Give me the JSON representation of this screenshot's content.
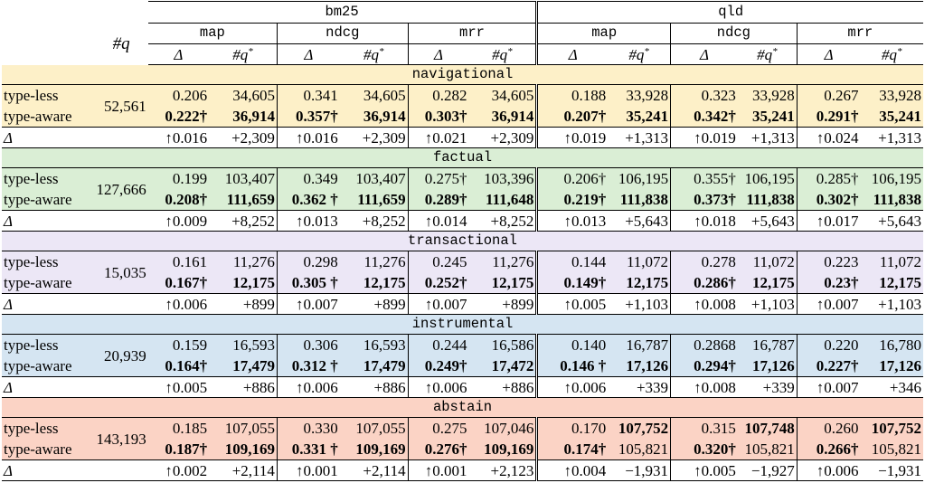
{
  "header": {
    "qcount_label": "#q",
    "systems": [
      "bm25",
      "qld"
    ],
    "metrics": [
      "map",
      "ndcg",
      "mrr"
    ],
    "sub_delta": "Δ",
    "sub_q_base": "#q",
    "sub_q_sup": "*"
  },
  "sections": [
    {
      "name": "navigational",
      "color": "#fdf0c8",
      "qcount": "52,561",
      "rows": [
        {
          "label": "type-less",
          "bold": false,
          "cells": [
            "0.206",
            "34,605",
            "0.341",
            "34,605",
            "0.282",
            "34,605",
            "0.188",
            "33,928",
            "0.323",
            "33,928",
            "0.267",
            "33,928"
          ]
        },
        {
          "label": "type-aware",
          "bold": true,
          "cells": [
            "0.222†",
            "36,914",
            "0.357†",
            "36,914",
            "0.303†",
            "36,914",
            "0.207†",
            "35,241",
            "0.342†",
            "35,241",
            "0.291†",
            "35,241"
          ]
        }
      ],
      "delta": {
        "label": "Δ",
        "cells": [
          "↑0.016",
          "+2,309",
          "↑0.016",
          "+2,309",
          "↑0.021",
          "+2,309",
          "↑0.019",
          "+1,313",
          "↑0.019",
          "+1,313",
          "↑0.024",
          "+1,313"
        ]
      }
    },
    {
      "name": "factual",
      "color": "#daeed5",
      "qcount": "127,666",
      "rows": [
        {
          "label": "type-less",
          "bold": false,
          "cells": [
            "0.199",
            "103,407",
            "0.349",
            "103,407",
            "0.275†",
            "103,396",
            "0.206†",
            "106,195",
            "0.355†",
            "106,195",
            "0.285†",
            "106,195"
          ]
        },
        {
          "label": "type-aware",
          "bold": true,
          "cells": [
            "0.208†",
            "111,659",
            "0.362 †",
            "111,659",
            "0.289†",
            "111,648",
            "0.219†",
            "111,838",
            "0.373†",
            "111,838",
            "0.302†",
            "111,838"
          ]
        }
      ],
      "delta": {
        "label": "Δ",
        "cells": [
          "↑0.009",
          "+8,252",
          "↑0.013",
          "+8,252",
          "↑0.014",
          "+8,252",
          "↑0.013",
          "+5,643",
          "↑0.018",
          "+5,643",
          "↑0.017",
          "+5,643"
        ]
      }
    },
    {
      "name": "transactional",
      "color": "#ece7f6",
      "qcount": "15,035",
      "rows": [
        {
          "label": "type-less",
          "bold": false,
          "cells": [
            "0.161",
            "11,276",
            "0.298",
            "11,276",
            "0.245",
            "11,276",
            "0.144",
            "11,072",
            "0.278",
            "11,072",
            "0.223",
            "11,072"
          ]
        },
        {
          "label": "type-aware",
          "bold": true,
          "cells": [
            "0.167†",
            "12,175",
            "0.305 †",
            "12,175",
            "0.252†",
            "12,175",
            "0.149†",
            "12,175",
            "0.286†",
            "12,175",
            "0.23†",
            "12,175"
          ]
        }
      ],
      "delta": {
        "label": "Δ",
        "cells": [
          "↑0.006",
          "+899",
          "↑0.007",
          "+899",
          "↑0.007",
          "+899",
          "↑0.005",
          "+1,103",
          "↑0.008",
          "+1,103",
          "↑0.007",
          "+1,103"
        ]
      }
    },
    {
      "name": "instrumental",
      "color": "#d5e5f2",
      "qcount": "20,939",
      "rows": [
        {
          "label": "type-less",
          "bold": false,
          "cells": [
            "0.159",
            "16,593",
            "0.306",
            "16,593",
            "0.244",
            "16,586",
            "0.140",
            "16,787",
            "0.2868",
            "16,787",
            "0.220",
            "16,780"
          ]
        },
        {
          "label": "type-aware",
          "bold": true,
          "cells": [
            "0.164†",
            "17,479",
            "0.312 †",
            "17,479",
            "0.249†",
            "17,472",
            "0.146 †",
            "17,126",
            "0.294†",
            "17,126",
            "0.227†",
            "17,126"
          ]
        }
      ],
      "delta": {
        "label": "Δ",
        "cells": [
          "↑0.005",
          "+886",
          "↑0.006",
          "+886",
          "↑0.006",
          "+886",
          "↑0.006",
          "+339",
          "↑0.008",
          "+339",
          "↑0.007",
          "+346"
        ]
      }
    },
    {
      "name": "abstain",
      "color": "#fbd3c5",
      "qcount": "143,193",
      "rows": [
        {
          "label": "type-less",
          "bold": false,
          "cells": [
            "0.185",
            "107,055",
            "0.330",
            "107,055",
            "0.275",
            "107,046",
            "0.170",
            "107,752",
            "0.315",
            "107,748",
            "0.260",
            "107,752"
          ],
          "bold_cells": [
            7,
            9,
            11
          ]
        },
        {
          "label": "type-aware",
          "bold": true,
          "cells": [
            "0.187†",
            "109,169",
            "0.331 †",
            "109,169",
            "0.276†",
            "109,169",
            "0.174†",
            "105,821",
            "0.320†",
            "105,821",
            "0.266†",
            "105,821"
          ],
          "plain_cells": [
            7,
            9,
            11
          ]
        }
      ],
      "delta": {
        "label": "Δ",
        "cells": [
          "↑0.002",
          "+2,114",
          "↑0.001",
          "+2,114",
          "↑0.001",
          "+2,123",
          "↑0.004",
          "−1,931",
          "↑0.005",
          "−1,927",
          "↑0.006",
          "−1,931"
        ]
      }
    }
  ]
}
